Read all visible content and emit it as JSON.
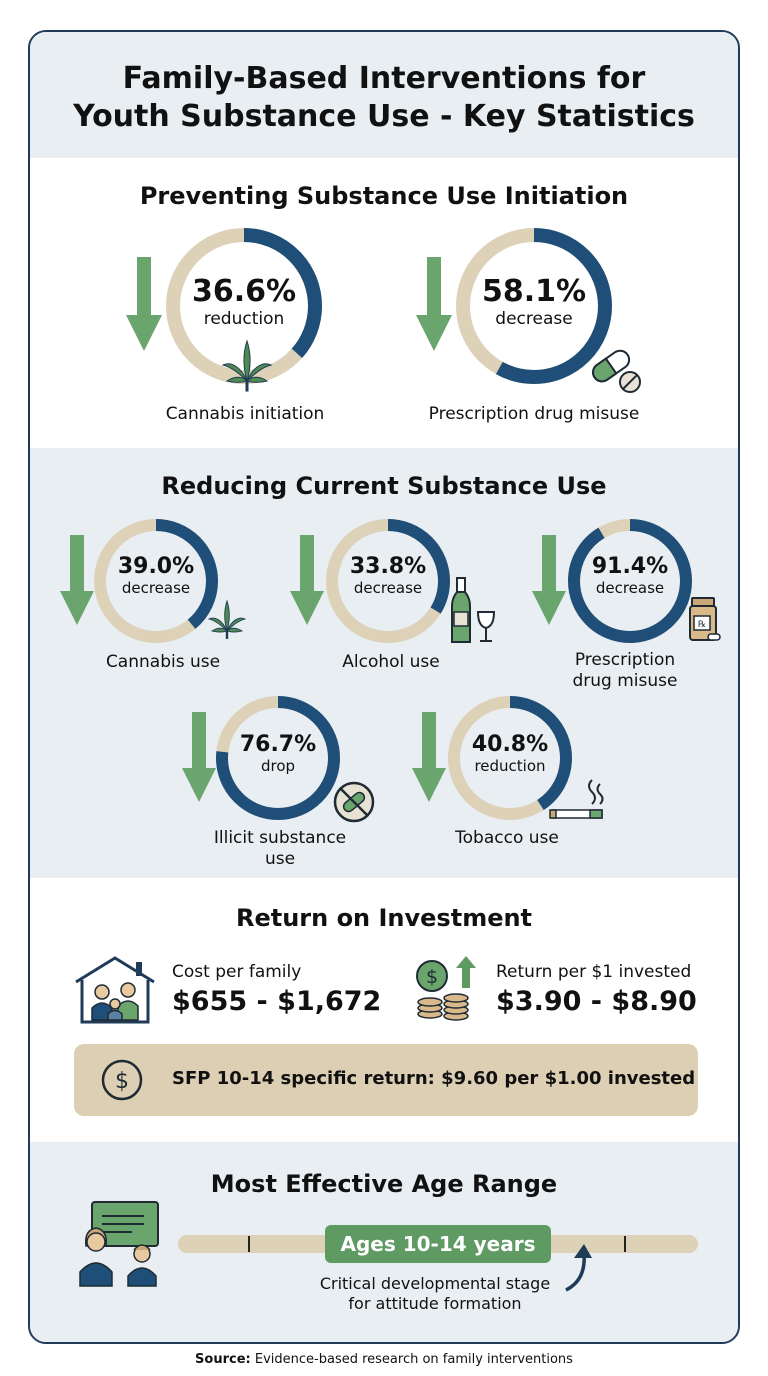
{
  "title_line1": "Family-Based Interventions for",
  "title_line2": "Youth Substance Use - Key Statistics",
  "colors": {
    "ring_fill": "#1f4e79",
    "ring_track": "#ddd1b8",
    "arrow": "#6aa56d",
    "band": "#e9eef2",
    "sfp_box": "#dccfb3",
    "age_pill": "#5e9a62"
  },
  "prevention": {
    "title": "Preventing Substance Use Initiation",
    "stats": [
      {
        "value": "36.6%",
        "fraction": 0.366,
        "word": "reduction",
        "label": "Cannabis initiation",
        "icon": "cannabis-leaf-icon"
      },
      {
        "value": "58.1%",
        "fraction": 0.581,
        "word": "decrease",
        "label": "Prescription drug misuse",
        "icon": "pill-capsule-icon"
      }
    ]
  },
  "current": {
    "title": "Reducing Current Substance Use",
    "stats": [
      {
        "value": "39.0%",
        "fraction": 0.39,
        "word": "decrease",
        "label": "Cannabis use",
        "icon": "cannabis-leaf-icon"
      },
      {
        "value": "33.8%",
        "fraction": 0.338,
        "word": "decrease",
        "label": "Alcohol use",
        "icon": "wine-bottle-icon"
      },
      {
        "value": "91.4%",
        "fraction": 0.914,
        "word": "decrease",
        "label_line1": "Prescription",
        "label_line2": "drug misuse",
        "icon": "pill-bottle-icon"
      },
      {
        "value": "76.7%",
        "fraction": 0.767,
        "word": "drop",
        "label_line1": "Illicit substance",
        "label_line2": "use",
        "icon": "no-drugs-icon"
      },
      {
        "value": "40.8%",
        "fraction": 0.408,
        "word": "reduction",
        "label": "Tobacco use",
        "icon": "cigarette-icon"
      }
    ]
  },
  "roi": {
    "title": "Return on Investment",
    "cost_label": "Cost per family",
    "cost_value": "$655 - $1,672",
    "return_label": "Return per $1 invested",
    "return_value": "$3.90 - $8.90",
    "sfp_text": "SFP 10-14 specific return: $9.60 per $1.00 invested"
  },
  "age": {
    "title": "Most Effective Age Range",
    "pill": "Ages 10-14 years",
    "note_line1": "Critical developmental stage",
    "note_line2": "for attitude formation"
  },
  "source": {
    "label": "Source:",
    "text": "Evidence-based research on family interventions"
  }
}
